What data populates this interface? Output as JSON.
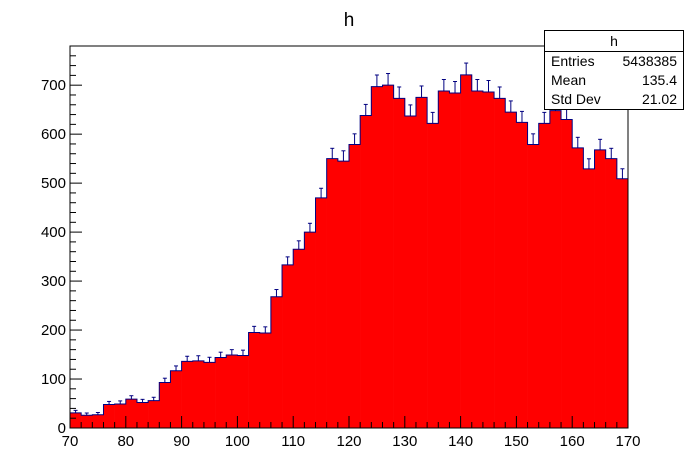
{
  "chart_data": {
    "type": "bar",
    "title": "h",
    "xlabel": "",
    "ylabel": "",
    "xlim": [
      70,
      170
    ],
    "ylim": [
      0,
      780
    ],
    "bin_width": 2,
    "x_ticks": [
      70,
      80,
      90,
      100,
      110,
      120,
      130,
      140,
      150,
      160,
      170
    ],
    "y_ticks": [
      0,
      100,
      200,
      300,
      400,
      500,
      600,
      700
    ],
    "fill_color": "#ff0000",
    "error_color": "#000080",
    "bin_low_edges": [
      70,
      72,
      74,
      76,
      78,
      80,
      82,
      84,
      86,
      88,
      90,
      92,
      94,
      96,
      98,
      100,
      102,
      104,
      106,
      108,
      110,
      112,
      114,
      116,
      118,
      120,
      122,
      124,
      126,
      128,
      130,
      132,
      134,
      136,
      138,
      140,
      142,
      144,
      146,
      148,
      150,
      152,
      154,
      156,
      158,
      160,
      162,
      164,
      166,
      168
    ],
    "values": [
      31,
      26,
      27,
      48,
      49,
      59,
      52,
      56,
      93,
      117,
      136,
      137,
      134,
      144,
      149,
      148,
      195,
      194,
      268,
      333,
      365,
      400,
      470,
      550,
      545,
      579,
      638,
      697,
      700,
      673,
      637,
      675,
      622,
      688,
      684,
      721,
      688,
      686,
      673,
      645,
      624,
      579,
      622,
      648,
      630,
      572,
      529,
      568,
      550,
      509
    ],
    "stats": {
      "title": "h",
      "entries_label": "Entries",
      "entries": "5438385",
      "mean_label": "Mean",
      "mean": "135.4",
      "stddev_label": "Std Dev",
      "stddev": "21.02"
    }
  }
}
